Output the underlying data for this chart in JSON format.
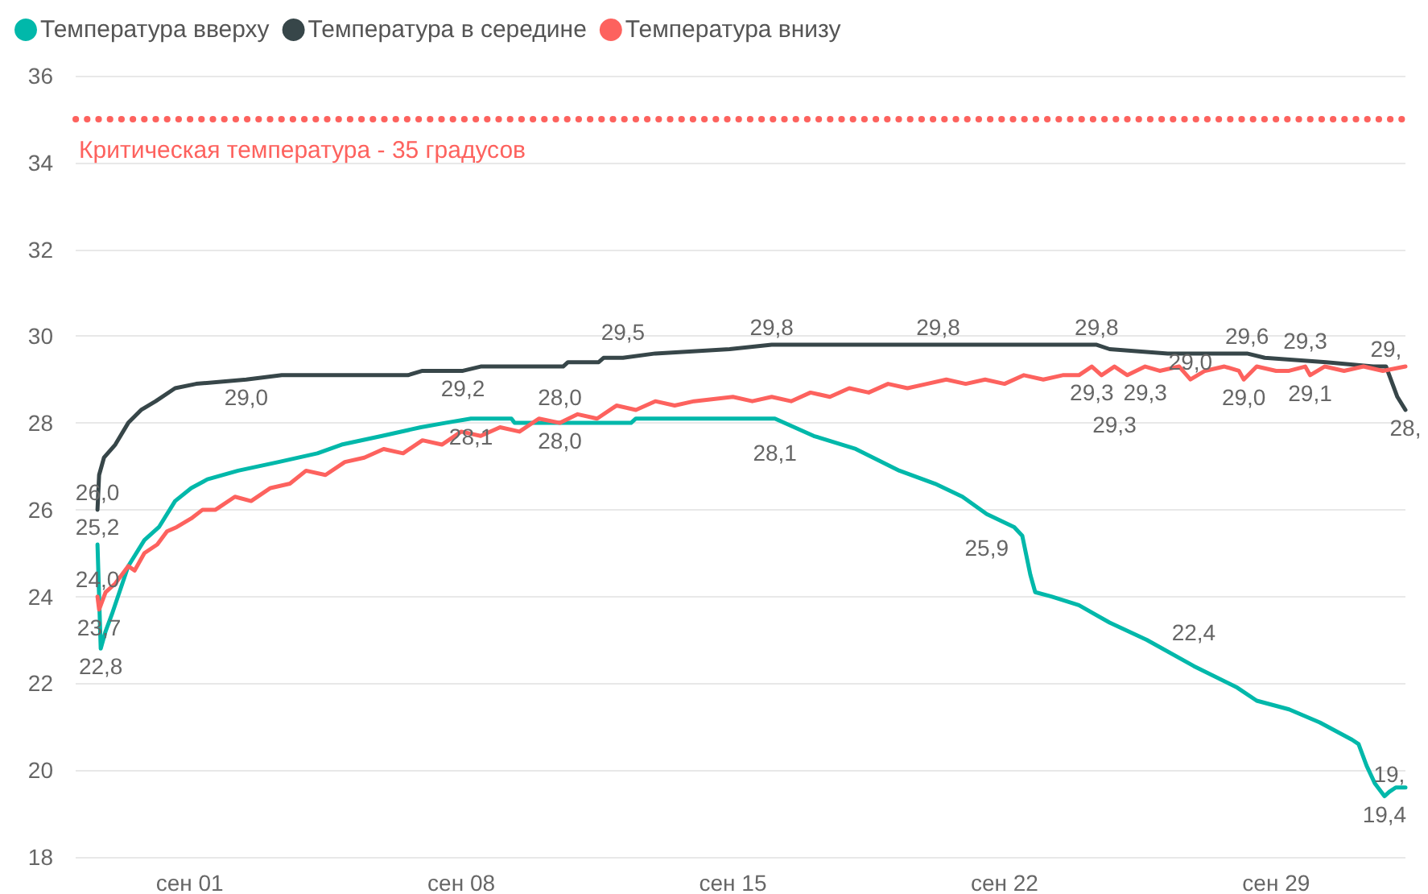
{
  "chart_data": {
    "type": "line",
    "legend": "top left",
    "grid": "y",
    "marker": "none",
    "line_style": "solid",
    "xlim": [
      "--08-29T01:30",
      "--10-02T08:00"
    ],
    "xticks": [
      {
        "value": "--09-01",
        "label": "сен 01"
      },
      {
        "value": "--09-08",
        "label": "сен 08"
      },
      {
        "value": "--09-15",
        "label": "сен 15"
      },
      {
        "value": "--09-22",
        "label": "сен 22"
      },
      {
        "value": "--09-29",
        "label": "сен 29"
      }
    ],
    "ylim": [
      18,
      36
    ],
    "yticks": [
      18,
      20,
      22,
      24,
      26,
      28,
      30,
      32,
      34,
      36
    ],
    "ref_lines": [
      {
        "axis": "y",
        "value": 35,
        "label": "Критическая температура - 35 градусов",
        "color": "#fd625e",
        "line_style": "dotted"
      }
    ],
    "series": [
      {
        "name": "Температура вверху",
        "color": "#01b8aa",
        "x": [
          "--08-29T15:00",
          "--08-29T17:00",
          "--08-29T20:00",
          "--08-30T00:00",
          "--08-30T10:00",
          "--08-30T20:00",
          "--08-31T05:00",
          "--08-31T15:00",
          "--09-01T01:00",
          "--09-01T11:00",
          "--09-02T06:00",
          "--09-03T07:00",
          "--09-04T07:00",
          "--09-04T22:00",
          "--09-05T23:00",
          "--09-06T23:00",
          "--09-07T14:00",
          "--09-08T06:00",
          "--09-09T07:00",
          "--09-09T09:00",
          "--09-10T13:00",
          "--09-12T09:00",
          "--09-12T12:00",
          "--09-16T02:00",
          "--09-17T02:00",
          "--09-18T04:00",
          "--09-19T07:00",
          "--09-20T05:00",
          "--09-20T22:00",
          "--09-21T13:00",
          "--09-22T06:00",
          "--09-22T11:00",
          "--09-22T16:00",
          "--09-22T19:00",
          "--09-23T05:00",
          "--09-23T22:00",
          "--09-24T17:00",
          "--09-25T16:00",
          "--09-26T21:00",
          "--09-28T00:00",
          "--09-28T12:00",
          "--09-29T08:00",
          "--09-30T03:00",
          "--09-30T23:00",
          "--10-01T03:00",
          "--10-01T08:00",
          "--10-01T13:00",
          "--10-01T19:00",
          "--10-01T22:00",
          "--10-02T02:00",
          "--10-02T08:00"
        ],
        "values": [
          25.2,
          22.8,
          23.2,
          23.6,
          24.7,
          25.3,
          25.6,
          26.2,
          26.5,
          26.7,
          26.9,
          27.1,
          27.3,
          27.5,
          27.7,
          27.9,
          28.0,
          28.1,
          28.1,
          28.0,
          28.0,
          28.0,
          28.1,
          28.1,
          27.7,
          27.4,
          26.9,
          26.6,
          26.3,
          25.9,
          25.6,
          25.4,
          24.5,
          24.1,
          24.0,
          23.8,
          23.4,
          23.0,
          22.4,
          21.9,
          21.6,
          21.4,
          21.1,
          20.7,
          20.6,
          20.1,
          19.7,
          19.4,
          19.5,
          19.6,
          19.6
        ],
        "value_labels": [
          "25,2",
          "22,8",
          null,
          null,
          null,
          null,
          null,
          null,
          null,
          null,
          null,
          null,
          null,
          null,
          null,
          null,
          null,
          "28,1",
          null,
          null,
          "28,0",
          null,
          null,
          "28,1",
          null,
          null,
          null,
          null,
          null,
          "25,9",
          null,
          null,
          null,
          null,
          null,
          null,
          null,
          null,
          "22,4",
          null,
          null,
          null,
          null,
          null,
          null,
          null,
          null,
          "19,4",
          "19,",
          null,
          null
        ]
      },
      {
        "name": "Температура в середине",
        "color": "#374649",
        "x": [
          "--08-29T15:00",
          "--08-29T16:00",
          "--08-29T19:00",
          "--08-30T02:00",
          "--08-30T10:00",
          "--08-30T18:00",
          "--08-31T03:00",
          "--08-31T15:00",
          "--09-01T04:00",
          "--09-02T11:00",
          "--09-03T09:00",
          "--09-06T15:00",
          "--09-07T00:00",
          "--09-08T01:00",
          "--09-08T12:00",
          "--09-10T15:00",
          "--09-10T18:00",
          "--09-11T13:00",
          "--09-11T16:00",
          "--09-12T04:00",
          "--09-13T00:00",
          "--09-14T22:00",
          "--09-16T00:00",
          "--09-20T07:00",
          "--09-24T09:00",
          "--09-24T17:00",
          "--09-26T05:00",
          "--09-28T06:00",
          "--09-28T17:00",
          "--09-30T07:00",
          "--10-01T12:00",
          "--10-01T20:00",
          "--10-02T03:00",
          "--10-02T08:00"
        ],
        "values": [
          26.0,
          26.8,
          27.2,
          27.5,
          28.0,
          28.3,
          28.5,
          28.8,
          28.9,
          29.0,
          29.1,
          29.1,
          29.2,
          29.2,
          29.3,
          29.3,
          29.4,
          29.4,
          29.5,
          29.5,
          29.6,
          29.7,
          29.8,
          29.8,
          29.8,
          29.7,
          29.6,
          29.6,
          29.5,
          29.4,
          29.3,
          29.3,
          28.6,
          28.3
        ],
        "value_labels": [
          "26,0",
          null,
          null,
          null,
          null,
          null,
          null,
          null,
          null,
          "29,0",
          null,
          null,
          null,
          "29,2",
          null,
          null,
          null,
          null,
          null,
          "29,5",
          null,
          null,
          "29,8",
          "29,8",
          "29,8",
          null,
          null,
          "29,6",
          null,
          null,
          null,
          "29,",
          null,
          "28,"
        ]
      },
      {
        "name": "Температура внизу",
        "color": "#fd625e",
        "x": [
          "--08-29T15:00",
          "--08-29T16:00",
          "--08-29T20:00",
          "--08-30T02:00",
          "--08-30T10:00",
          "--08-30T14:00",
          "--08-30T20:00",
          "--08-31T04:00",
          "--08-31T10:00",
          "--08-31T16:00",
          "--09-01T01:00",
          "--09-01T08:00",
          "--09-01T16:00",
          "--09-02T04:00",
          "--09-02T14:00",
          "--09-03T02:00",
          "--09-03T14:00",
          "--09-04T00:00",
          "--09-04T12:00",
          "--09-05T00:00",
          "--09-05T12:00",
          "--09-06T00:00",
          "--09-06T12:00",
          "--09-07T00:00",
          "--09-07T12:00",
          "--09-08T00:00",
          "--09-08T12:00",
          "--09-09T00:00",
          "--09-09T12:00",
          "--09-10T00:00",
          "--09-10T13:00",
          "--09-11T00:00",
          "--09-11T12:00",
          "--09-12T00:00",
          "--09-12T12:00",
          "--09-13T00:00",
          "--09-13T12:00",
          "--09-14T00:00",
          "--09-15T00:00",
          "--09-15T12:00",
          "--09-16T00:00",
          "--09-16T12:00",
          "--09-17T00:00",
          "--09-17T12:00",
          "--09-18T00:00",
          "--09-18T12:00",
          "--09-19T00:00",
          "--09-19T12:00",
          "--09-20T00:00",
          "--09-20T12:00",
          "--09-21T00:00",
          "--09-21T12:00",
          "--09-22T00:00",
          "--09-22T12:00",
          "--09-23T00:00",
          "--09-23T12:00",
          "--09-23T22:00",
          "--09-24T06:00",
          "--09-24T12:00",
          "--09-24T20:00",
          "--09-25T04:00",
          "--09-25T15:00",
          "--09-26T00:00",
          "--09-26T12:00",
          "--09-26T19:00",
          "--09-27T04:00",
          "--09-27T16:00",
          "--09-28T01:00",
          "--09-28T04:00",
          "--09-28T12:00",
          "--09-29T00:00",
          "--09-29T08:00",
          "--09-29T18:00",
          "--09-29T21:00",
          "--09-30T06:00",
          "--09-30T18:00",
          "--10-01T06:00",
          "--10-01T18:00",
          "--10-02T08:00"
        ],
        "values": [
          24.0,
          23.7,
          24.1,
          24.3,
          24.7,
          24.6,
          25.0,
          25.2,
          25.5,
          25.6,
          25.8,
          26.0,
          26.0,
          26.3,
          26.2,
          26.5,
          26.6,
          26.9,
          26.8,
          27.1,
          27.2,
          27.4,
          27.3,
          27.6,
          27.5,
          27.8,
          27.7,
          27.9,
          27.8,
          28.1,
          28.0,
          28.2,
          28.1,
          28.4,
          28.3,
          28.5,
          28.4,
          28.5,
          28.6,
          28.5,
          28.6,
          28.5,
          28.7,
          28.6,
          28.8,
          28.7,
          28.9,
          28.8,
          28.9,
          29.0,
          28.9,
          29.0,
          28.9,
          29.1,
          29.0,
          29.1,
          29.1,
          29.3,
          29.1,
          29.3,
          29.1,
          29.3,
          29.2,
          29.3,
          29.0,
          29.2,
          29.3,
          29.2,
          29.0,
          29.3,
          29.2,
          29.2,
          29.3,
          29.1,
          29.3,
          29.2,
          29.3,
          29.2,
          29.3
        ],
        "value_labels": [
          "24,0",
          "23,7",
          null,
          null,
          null,
          null,
          null,
          null,
          null,
          null,
          null,
          null,
          null,
          null,
          null,
          null,
          null,
          null,
          null,
          null,
          null,
          null,
          null,
          null,
          null,
          null,
          null,
          null,
          null,
          null,
          "28,0",
          null,
          null,
          null,
          null,
          null,
          null,
          null,
          null,
          null,
          null,
          null,
          null,
          null,
          null,
          null,
          null,
          null,
          null,
          null,
          null,
          null,
          null,
          null,
          null,
          null,
          null,
          "29,3",
          null,
          "29,3",
          null,
          "29,3",
          null,
          null,
          "29,0",
          null,
          null,
          null,
          "29,0",
          null,
          null,
          null,
          "29,3",
          "29,1",
          null,
          null,
          null,
          null,
          null
        ]
      }
    ]
  }
}
